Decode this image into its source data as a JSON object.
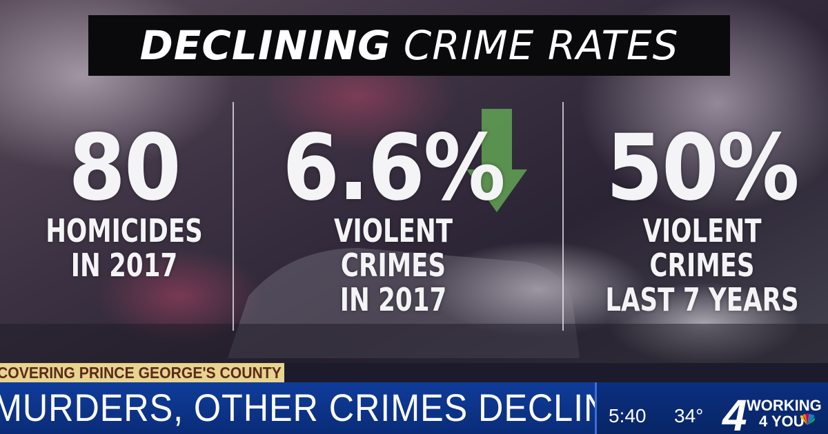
{
  "graphic": {
    "title_bold": "DECLINING",
    "title_rest": "CRIME RATES",
    "stats": [
      {
        "value": "80",
        "line1": "HOMICIDES",
        "line2": "IN 2017"
      },
      {
        "value": "6.6%",
        "line1": "VIOLENT CRIMES",
        "line2": "IN 2017"
      },
      {
        "value": "50%",
        "line1": "VIOLENT CRIMES",
        "line2": "LAST 7 YEARS"
      }
    ],
    "arrow_color": "#5e9a52"
  },
  "lower_third": {
    "ticker": "COVERING PRINCE GEORGE'S COUNTY",
    "headline": "MURDERS, OTHER CRIMES DECLINE",
    "time": "5:40",
    "temperature": "34°",
    "station_number": "4",
    "station_line1": "WORKING",
    "station_line2": "4 YOU",
    "logo_icon": "nbc-peacock-icon"
  },
  "colors": {
    "headline_bar": "#0f3c9a",
    "ticker_bar": "#e7d48f",
    "ticker_text": "#5a2b1a",
    "title_box": "#0a0a0c"
  }
}
